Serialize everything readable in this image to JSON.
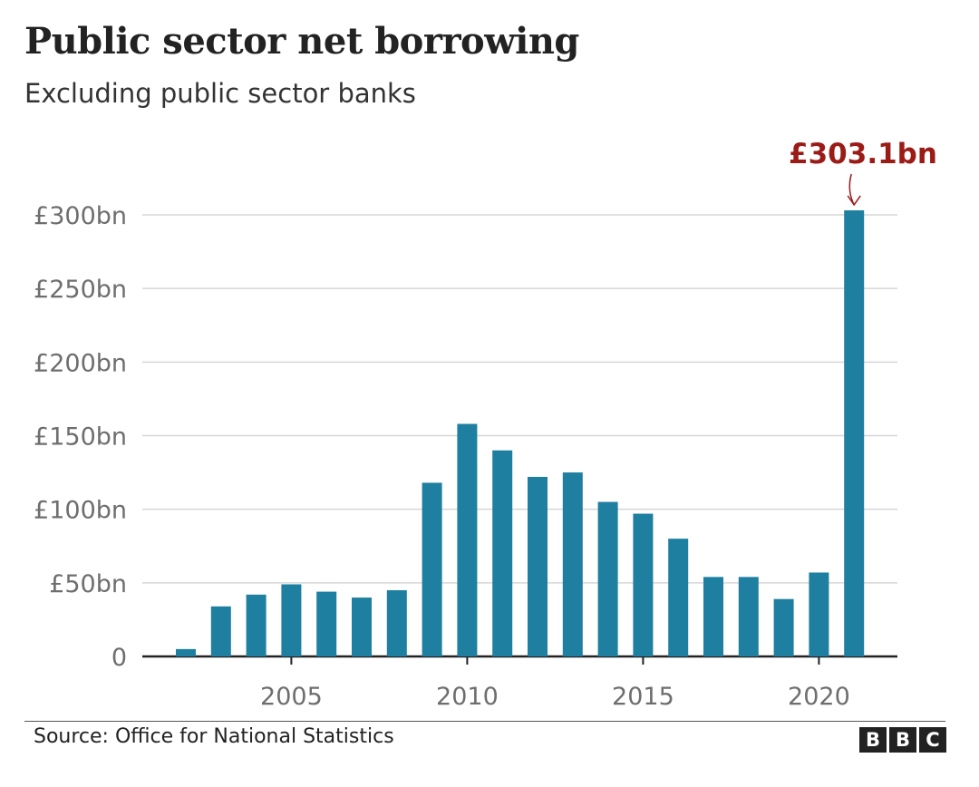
{
  "header": {
    "title": "Public sector net borrowing",
    "subtitle": "Excluding public sector banks"
  },
  "footer": {
    "source": "Source: Office for National Statistics",
    "logo_letters": [
      "B",
      "B",
      "C"
    ]
  },
  "colors": {
    "bar": "#1e7fa0",
    "annotation": "#9b1b17",
    "grid": "#d6d6d6",
    "axis_text": "#6e6e6e",
    "baseline": "#222222"
  },
  "chart_data": {
    "type": "bar",
    "title": "Public sector net borrowing",
    "subtitle": "Excluding public sector banks",
    "x": [
      2002,
      2003,
      2004,
      2005,
      2006,
      2007,
      2008,
      2009,
      2010,
      2011,
      2012,
      2013,
      2014,
      2015,
      2016,
      2017,
      2018,
      2019,
      2020,
      2021
    ],
    "values": [
      5,
      34,
      42,
      49,
      44,
      40,
      45,
      118,
      158,
      140,
      122,
      125,
      105,
      97,
      80,
      54,
      54,
      39,
      57,
      303.1
    ],
    "unit": "£bn",
    "ylim": [
      0,
      300
    ],
    "yticks": [
      0,
      50,
      100,
      150,
      200,
      250,
      300
    ],
    "ytick_labels": [
      "0",
      "£50bn",
      "£100bn",
      "£150bn",
      "£200bn",
      "£250bn",
      "£300bn"
    ],
    "xticks": [
      2005,
      2010,
      2015,
      2020
    ],
    "xtick_labels": [
      "2005",
      "2010",
      "2015",
      "2020"
    ],
    "annotation": {
      "label": "£303.1bn",
      "x": 2021,
      "value": 303.1
    },
    "grid": true,
    "legend": "none"
  }
}
